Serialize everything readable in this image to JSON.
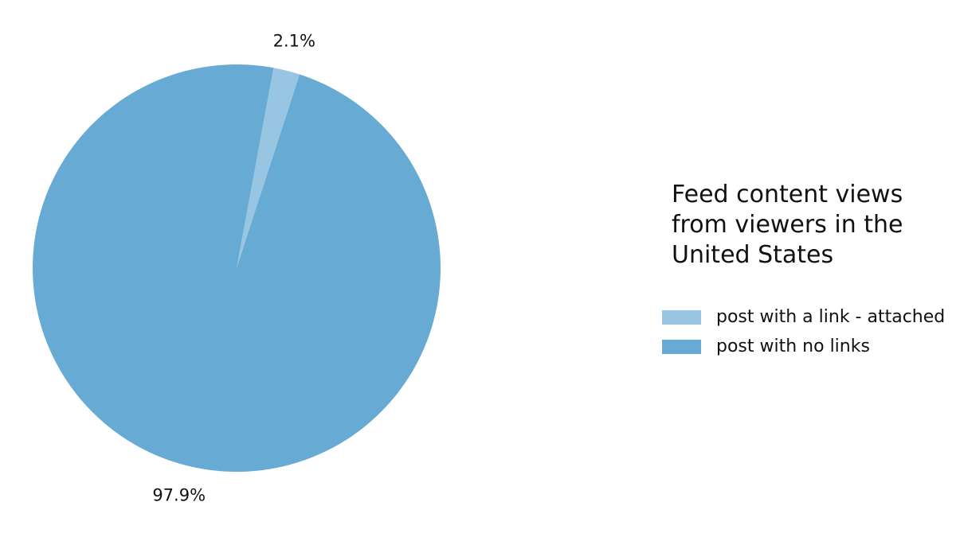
{
  "chart_data": {
    "type": "pie",
    "title": "",
    "legend_title": "Feed content views from viewers in the United States",
    "legend_placement": "right",
    "slices": [
      {
        "label": "post with a link - attached",
        "value": 2.1,
        "display": "2.1%",
        "color": "#98c5e1"
      },
      {
        "label": "post with no links",
        "value": 97.9,
        "display": "97.9%",
        "color": "#67abd5"
      }
    ]
  },
  "legend": {
    "title": "Feed content views from viewers in the United States",
    "items": [
      {
        "label": "post with a link - attached",
        "color": "#98c5e1"
      },
      {
        "label": "post with no links",
        "color": "#67abd5"
      }
    ]
  }
}
